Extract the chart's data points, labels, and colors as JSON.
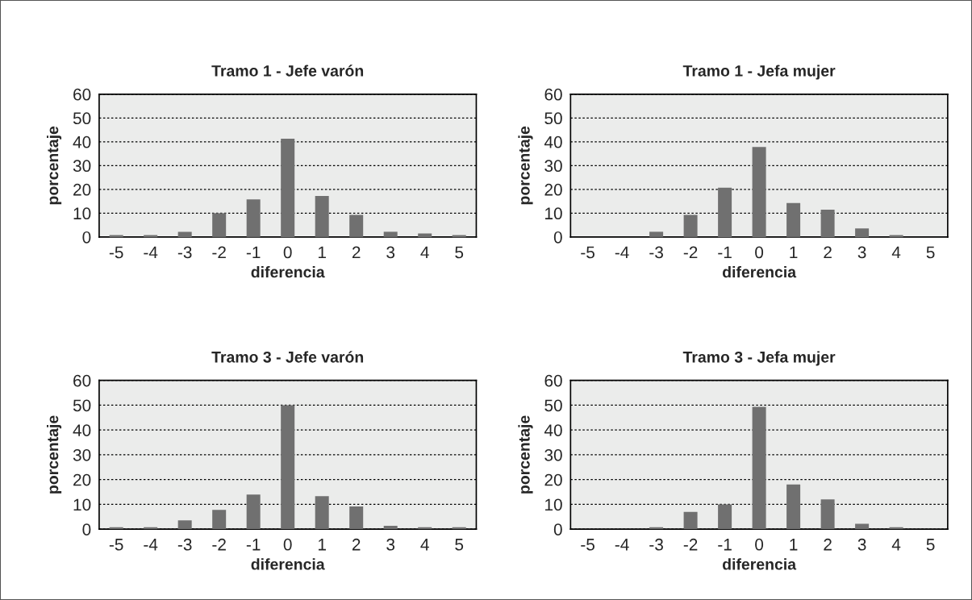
{
  "chart_data": [
    {
      "type": "bar",
      "title": "Tramo 1 - Jefe varón",
      "xlabel": "diferencia",
      "ylabel": "porcentaje",
      "categories": [
        "-5",
        "-4",
        "-3",
        "-2",
        "-1",
        "0",
        "1",
        "2",
        "3",
        "4",
        "5"
      ],
      "values": [
        0.8,
        0.8,
        2.2,
        10,
        15.8,
        41.3,
        17.2,
        9.3,
        2.2,
        1.5,
        0.8
      ],
      "color": "#707070",
      "ylim": [
        0,
        60
      ],
      "yticks": [
        0,
        10,
        20,
        30,
        40,
        50,
        60
      ],
      "grid": "y"
    },
    {
      "type": "bar",
      "title": "Tramo 1 - Jefa mujer",
      "xlabel": "diferencia",
      "ylabel": "porcentaje",
      "categories": [
        "-5",
        "-4",
        "-3",
        "-2",
        "-1",
        "0",
        "1",
        "2",
        "3",
        "4",
        "5"
      ],
      "values": [
        0,
        0,
        2.2,
        9.3,
        20.7,
        37.8,
        14.3,
        11.5,
        3.6,
        0.8,
        0
      ],
      "color": "#707070",
      "ylim": [
        0,
        60
      ],
      "yticks": [
        0,
        10,
        20,
        30,
        40,
        50,
        60
      ],
      "grid": "y"
    },
    {
      "type": "bar",
      "title": "Tramo 3 - Jefe varón",
      "xlabel": "diferencia",
      "ylabel": "porcentaje",
      "categories": [
        "-5",
        "-4",
        "-3",
        "-2",
        "-1",
        "0",
        "1",
        "2",
        "3",
        "4",
        "5"
      ],
      "values": [
        0.8,
        0.8,
        3.6,
        7.8,
        14,
        50,
        13.3,
        9.2,
        1.4,
        0.8,
        0.8
      ],
      "color": "#707070",
      "ylim": [
        0,
        60
      ],
      "yticks": [
        0,
        10,
        20,
        30,
        40,
        50,
        60
      ],
      "grid": "y"
    },
    {
      "type": "bar",
      "title": "Tramo 3 - Jefa mujer",
      "xlabel": "diferencia",
      "ylabel": "porcentaje",
      "categories": [
        "-5",
        "-4",
        "-3",
        "-2",
        "-1",
        "0",
        "1",
        "2",
        "3",
        "4",
        "5"
      ],
      "values": [
        0,
        0,
        0.8,
        7,
        10,
        49.3,
        18,
        12,
        2.2,
        0.8,
        0
      ],
      "color": "#707070",
      "ylim": [
        0,
        60
      ],
      "yticks": [
        0,
        10,
        20,
        30,
        40,
        50,
        60
      ],
      "grid": "y"
    }
  ]
}
